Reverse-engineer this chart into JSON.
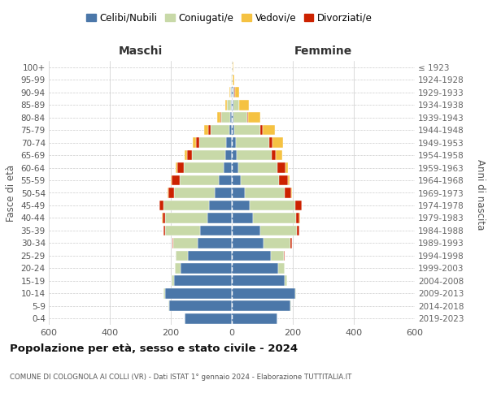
{
  "age_groups": [
    "0-4",
    "5-9",
    "10-14",
    "15-19",
    "20-24",
    "25-29",
    "30-34",
    "35-39",
    "40-44",
    "45-49",
    "50-54",
    "55-59",
    "60-64",
    "65-69",
    "70-74",
    "75-79",
    "80-84",
    "85-89",
    "90-94",
    "95-99",
    "100+"
  ],
  "birth_years": [
    "2019-2023",
    "2014-2018",
    "2009-2013",
    "2004-2008",
    "1999-2003",
    "1994-1998",
    "1989-1993",
    "1984-1988",
    "1979-1983",
    "1974-1978",
    "1969-1973",
    "1964-1968",
    "1959-1963",
    "1954-1958",
    "1949-1953",
    "1944-1948",
    "1939-1943",
    "1934-1938",
    "1929-1933",
    "1924-1928",
    "≤ 1923"
  ],
  "colors": {
    "celibi": "#4b77a9",
    "coniugati": "#c8d9a8",
    "vedovi": "#f5c242",
    "divorziati": "#cc2200"
  },
  "males": {
    "celibi": [
      155,
      205,
      220,
      190,
      168,
      143,
      112,
      105,
      80,
      75,
      55,
      42,
      28,
      22,
      18,
      8,
      5,
      3,
      2,
      1,
      1
    ],
    "coniugati": [
      1,
      2,
      3,
      8,
      18,
      40,
      80,
      115,
      140,
      150,
      135,
      130,
      130,
      110,
      90,
      62,
      30,
      12,
      4,
      1,
      0
    ],
    "vedovi": [
      0,
      0,
      0,
      0,
      0,
      0,
      0,
      0,
      1,
      1,
      2,
      3,
      5,
      8,
      10,
      12,
      10,
      5,
      3,
      1,
      0
    ],
    "divorziati": [
      0,
      0,
      0,
      0,
      0,
      1,
      3,
      5,
      8,
      12,
      18,
      25,
      22,
      15,
      10,
      8,
      2,
      1,
      0,
      0,
      0
    ]
  },
  "females": {
    "celibi": [
      148,
      192,
      208,
      172,
      153,
      128,
      103,
      93,
      70,
      58,
      43,
      30,
      22,
      15,
      12,
      8,
      6,
      5,
      4,
      2,
      2
    ],
    "coniugati": [
      1,
      2,
      3,
      8,
      20,
      42,
      88,
      120,
      140,
      150,
      130,
      125,
      128,
      115,
      110,
      85,
      45,
      18,
      5,
      1,
      0
    ],
    "vedovi": [
      0,
      0,
      0,
      0,
      0,
      0,
      0,
      0,
      1,
      2,
      3,
      5,
      10,
      20,
      35,
      40,
      40,
      30,
      15,
      5,
      2
    ],
    "divorziati": [
      0,
      0,
      0,
      0,
      1,
      2,
      5,
      8,
      12,
      20,
      22,
      28,
      25,
      15,
      10,
      8,
      3,
      2,
      1,
      0,
      0
    ]
  },
  "title": "Popolazione per età, sesso e stato civile - 2024",
  "subtitle": "COMUNE DI COLOGNOLA AI COLLI (VR) - Dati ISTAT 1° gennaio 2024 - Elaborazione TUTTITALIA.IT",
  "xlabel_left": "Maschi",
  "xlabel_right": "Femmine",
  "ylabel_left": "Fasce di età",
  "ylabel_right": "Anni di nascita",
  "xlim": 600,
  "legend_labels": [
    "Celibi/Nubili",
    "Coniugati/e",
    "Vedovi/e",
    "Divorziati/e"
  ],
  "bg_color": "#ffffff",
  "grid_color": "#cccccc"
}
